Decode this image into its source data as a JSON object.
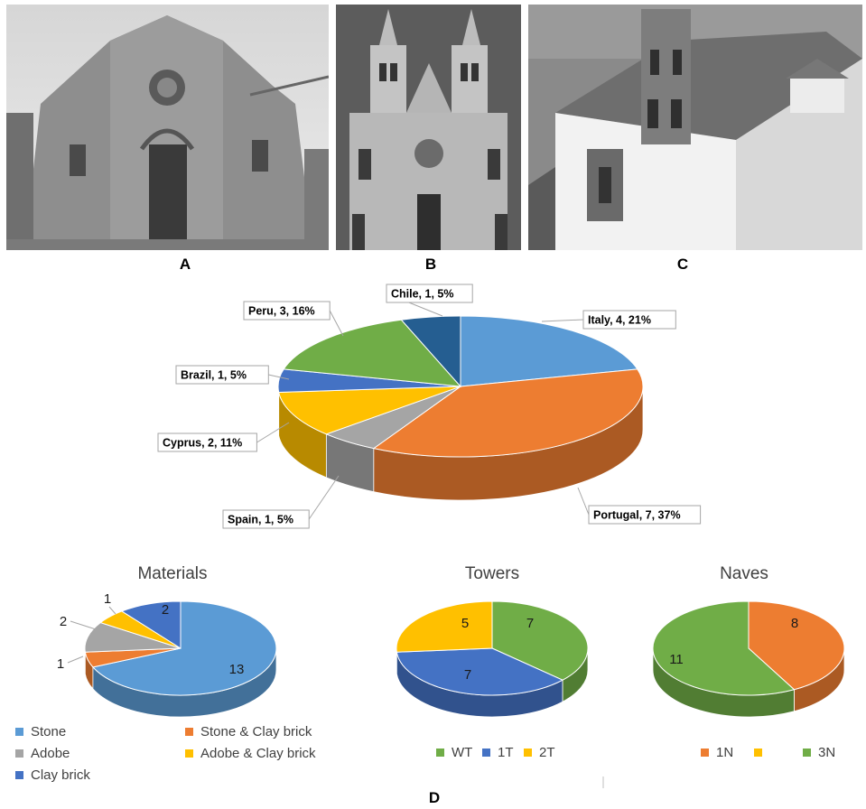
{
  "panels": {
    "a": "A",
    "b": "B",
    "c": "C",
    "d": "D"
  },
  "chart_data": [
    {
      "type": "pie",
      "title": "",
      "categories": [
        "Italy",
        "Portugal",
        "Spain",
        "Cyprus",
        "Brazil",
        "Peru",
        "Chile"
      ],
      "values": [
        4,
        7,
        1,
        2,
        1,
        3,
        1
      ],
      "labels": [
        "Italy, 4, 21%",
        "Portugal, 7, 37%",
        "Spain, 1, 5%",
        "Cyprus, 2, 11%",
        "Brazil, 1, 5%",
        "Peru, 3, 16%",
        "Chile, 1, 5%"
      ],
      "colors": [
        "#5b9bd5",
        "#ed7d31",
        "#a5a5a5",
        "#ffc000",
        "#4472c4",
        "#70ad47",
        "#255e91"
      ]
    },
    {
      "type": "pie",
      "title": "Materials",
      "categories": [
        "Stone",
        "Stone & Clay brick",
        "Adobe",
        "Adobe & Clay brick",
        "Clay brick"
      ],
      "values": [
        13,
        1,
        2,
        1,
        2
      ],
      "colors": [
        "#5b9bd5",
        "#ed7d31",
        "#a5a5a5",
        "#ffc000",
        "#4472c4"
      ],
      "legend": "bottom"
    },
    {
      "type": "pie",
      "title": "Towers",
      "categories": [
        "WT",
        "1T",
        "2T"
      ],
      "values": [
        7,
        7,
        5
      ],
      "colors": [
        "#70ad47",
        "#4472c4",
        "#ffc000"
      ],
      "legend": "bottom"
    },
    {
      "type": "pie",
      "title": "Naves",
      "categories": [
        "1N",
        "",
        "3N"
      ],
      "values": [
        8,
        0,
        11
      ],
      "colors": [
        "#ed7d31",
        "#ffc000",
        "#70ad47"
      ],
      "legend": "bottom"
    }
  ]
}
